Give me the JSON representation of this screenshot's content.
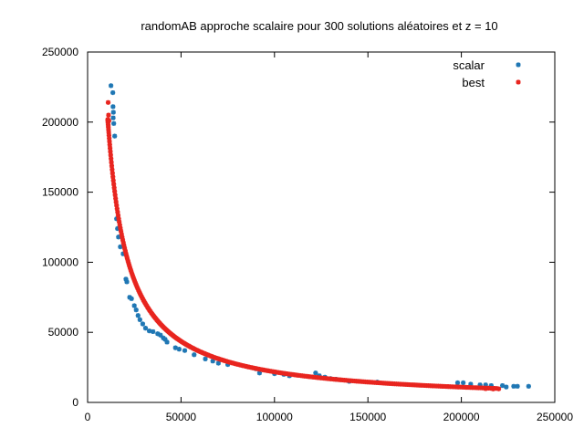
{
  "chart_data": {
    "type": "scatter",
    "title": "randomAB approche scalaire pour 300 solutions aléatoires et z = 10",
    "xlabel": "",
    "ylabel": "",
    "xlim": [
      0,
      250000
    ],
    "ylim": [
      0,
      250000
    ],
    "x_ticks": [
      0,
      50000,
      100000,
      150000,
      200000,
      250000
    ],
    "y_ticks": [
      0,
      50000,
      100000,
      150000,
      200000,
      250000
    ],
    "x_tick_labels": [
      "0",
      "50000",
      "100000",
      "150000",
      "200000",
      "250000"
    ],
    "y_tick_labels": [
      "0",
      "50000",
      "100000",
      "150000",
      "200000",
      "250000"
    ],
    "grid": false,
    "legend_position": "top-right",
    "series": [
      {
        "name": "scalar",
        "color": "#1f77b4",
        "marker": "asterisk",
        "points": [
          [
            12500,
            226000
          ],
          [
            13500,
            221000
          ],
          [
            13600,
            211000
          ],
          [
            13800,
            207000
          ],
          [
            13700,
            203000
          ],
          [
            14000,
            199000
          ],
          [
            14500,
            190000
          ],
          [
            15500,
            131000
          ],
          [
            16000,
            124000
          ],
          [
            16500,
            118000
          ],
          [
            17500,
            111000
          ],
          [
            19000,
            106000
          ],
          [
            20500,
            88000
          ],
          [
            21000,
            86000
          ],
          [
            22500,
            75000
          ],
          [
            23500,
            74000
          ],
          [
            25000,
            69000
          ],
          [
            26000,
            66000
          ],
          [
            27000,
            62000
          ],
          [
            28000,
            59000
          ],
          [
            29500,
            56000
          ],
          [
            31000,
            53000
          ],
          [
            33000,
            51000
          ],
          [
            35000,
            50500
          ],
          [
            37500,
            49000
          ],
          [
            39000,
            48000
          ],
          [
            40500,
            46000
          ],
          [
            41500,
            45000
          ],
          [
            42500,
            43000
          ],
          [
            47000,
            39000
          ],
          [
            49000,
            38000
          ],
          [
            52000,
            37000
          ],
          [
            57000,
            34000
          ],
          [
            63000,
            31000
          ],
          [
            67000,
            29500
          ],
          [
            70000,
            28000
          ],
          [
            75000,
            27000
          ],
          [
            90000,
            24000
          ],
          [
            92000,
            21000
          ],
          [
            100000,
            20500
          ],
          [
            105000,
            20000
          ],
          [
            108000,
            19000
          ],
          [
            122000,
            21000
          ],
          [
            124000,
            19000
          ],
          [
            127000,
            18000
          ],
          [
            130000,
            17000
          ],
          [
            133000,
            16500
          ],
          [
            140000,
            15000
          ],
          [
            155000,
            14500
          ],
          [
            198000,
            14000
          ],
          [
            201000,
            14000
          ],
          [
            205000,
            13000
          ],
          [
            210000,
            12500
          ],
          [
            213000,
            12500
          ],
          [
            216000,
            12000
          ],
          [
            222000,
            12000
          ],
          [
            224000,
            11000
          ],
          [
            228000,
            11500
          ],
          [
            230000,
            11500
          ],
          [
            236000,
            11500
          ]
        ]
      },
      {
        "name": "best",
        "color": "#e8251f",
        "marker": "asterisk",
        "curve": {
          "k": 2180000000,
          "x_min": 10800,
          "x_max": 219000,
          "count": 300
        },
        "extra_points": [
          [
            11000,
            214000
          ],
          [
            11200,
            205000
          ],
          [
            11400,
            201000
          ],
          [
            213000,
            9800
          ],
          [
            217000,
            9600
          ],
          [
            220000,
            9700
          ]
        ]
      }
    ]
  }
}
